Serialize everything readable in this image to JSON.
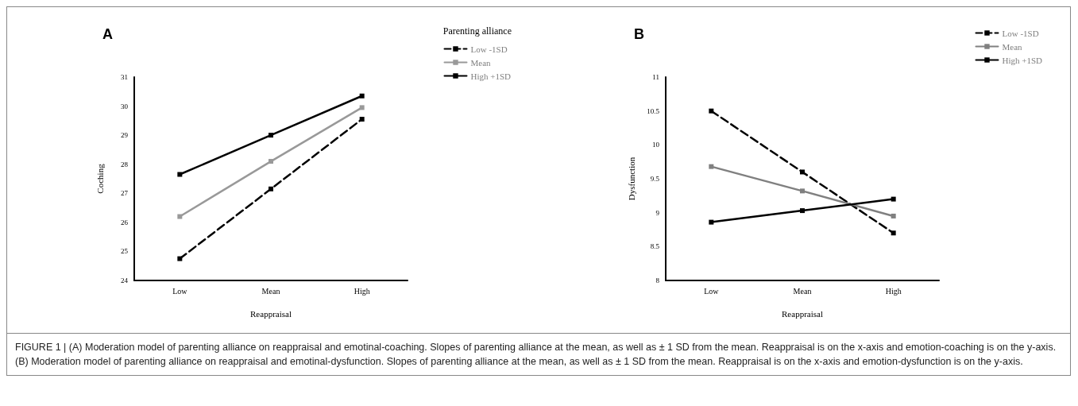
{
  "chart_data": [
    {
      "type": "line",
      "title": "A",
      "xlabel": "Reappraisal",
      "ylabel": "Coching",
      "legend_title": "Parenting alliance",
      "categories": [
        "Low",
        "Mean",
        "High"
      ],
      "series": [
        {
          "name": "Low -1SD",
          "color": "#000000",
          "line_style": "dashed",
          "values": [
            24.75,
            27.15,
            29.55
          ]
        },
        {
          "name": "Mean",
          "color": "#999999",
          "line_style": "solid",
          "values": [
            26.2,
            28.1,
            29.95
          ]
        },
        {
          "name": "High +1SD",
          "color": "#000000",
          "line_style": "solid",
          "values": [
            27.65,
            29.0,
            30.35
          ]
        }
      ],
      "ylim": [
        24,
        31
      ],
      "yticks": [
        24,
        25,
        26,
        27,
        28,
        29,
        30,
        31
      ],
      "grid": false,
      "legend": "top right",
      "marker": "square",
      "annotations": [
        "FIGURE 1 | (A) Moderation model of parenting alliance on reappraisal and emotinal-coaching. Slopes of parenting alliance at the mean, as well as ± 1 SD from the mean. Reappraisal is on the x-axis and emotion-coaching is on the y-axis. (B) Moderation model of parenting alliance on reappraisal and emotinal-dysfunction. Slopes of parenting alliance at the mean, as well as ± 1 SD from the mean. Reappraisal is on the x-axis and emotion-dysfunction is on the y-axis."
      ]
    },
    {
      "type": "line",
      "title": "B",
      "xlabel": "Reappraisal",
      "ylabel": "Dysfunction",
      "categories": [
        "Low",
        "Mean",
        "High"
      ],
      "series": [
        {
          "name": "Low -1SD",
          "color": "#000000",
          "line_style": "dashed",
          "values": [
            10.5,
            9.6,
            8.7
          ]
        },
        {
          "name": "Mean",
          "color": "#808080",
          "line_style": "solid",
          "values": [
            9.68,
            9.32,
            8.95
          ]
        },
        {
          "name": "High +1SD",
          "color": "#000000",
          "line_style": "solid",
          "values": [
            8.86,
            9.03,
            9.2
          ]
        }
      ],
      "ylim": [
        8,
        11
      ],
      "yticks": [
        8,
        8.5,
        9,
        9.5,
        10,
        10.5,
        11
      ],
      "grid": false,
      "legend": "top right",
      "marker": "square"
    }
  ]
}
